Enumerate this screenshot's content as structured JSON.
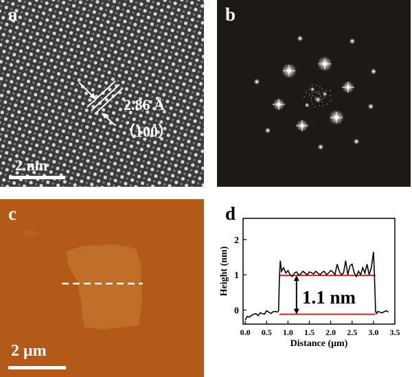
{
  "panels": {
    "a": {
      "label": "a",
      "spacing": "2.86 Å",
      "plane": "（100）",
      "scalebar": "2 nm"
    },
    "b": {
      "label": "b"
    },
    "c": {
      "label": "c",
      "scalebar": "2 μm"
    },
    "d": {
      "label": "d",
      "annotation": "1.1 nm"
    }
  },
  "colors": {
    "afm_background": "#b45a18",
    "fft_background": "#1d1a16",
    "guide_line": "#e02020"
  },
  "chart_data": {
    "type": "line",
    "xlabel": "Distance (μm)",
    "ylabel": "Height (nm)",
    "xlim": [
      -0.05,
      3.5
    ],
    "ylim": [
      -0.4,
      2.6
    ],
    "x_ticks": [
      0.0,
      0.5,
      1.0,
      1.5,
      2.0,
      2.5,
      3.0,
      3.5
    ],
    "x_tick_labels": [
      "0.0",
      "0.5",
      "1.0",
      "1.5",
      "2.0",
      "2.5",
      "3.0",
      "3.5"
    ],
    "y_ticks": [
      0,
      1,
      2
    ],
    "y_tick_labels": [
      "0",
      "1",
      "2"
    ],
    "guide_lines": [
      -0.12,
      0.98
    ],
    "guide_x_range": [
      0.8,
      3.05
    ],
    "arrow_x": 1.2,
    "series": [
      {
        "x": [
          0.0,
          0.05,
          0.1,
          0.15,
          0.2,
          0.25,
          0.3,
          0.35,
          0.4,
          0.45,
          0.5,
          0.55,
          0.6,
          0.65,
          0.7,
          0.75,
          0.78,
          0.8,
          0.82,
          0.85,
          0.9,
          0.95,
          1.0,
          1.05,
          1.1,
          1.15,
          1.2,
          1.25,
          1.3,
          1.35,
          1.4,
          1.45,
          1.5,
          1.55,
          1.6,
          1.65,
          1.7,
          1.75,
          1.8,
          1.85,
          1.9,
          1.95,
          2.0,
          2.05,
          2.1,
          2.15,
          2.2,
          2.25,
          2.3,
          2.35,
          2.4,
          2.45,
          2.5,
          2.55,
          2.6,
          2.65,
          2.7,
          2.75,
          2.8,
          2.85,
          2.9,
          2.95,
          3.0,
          3.02,
          3.05,
          3.08,
          3.1,
          3.15,
          3.2,
          3.25,
          3.3,
          3.35
        ],
        "y": [
          -0.28,
          -0.18,
          -0.2,
          -0.15,
          -0.12,
          -0.1,
          -0.16,
          -0.08,
          -0.1,
          -0.12,
          -0.02,
          -0.06,
          -0.1,
          -0.05,
          -0.04,
          -0.06,
          -0.02,
          0.9,
          1.4,
          1.1,
          1.2,
          1.05,
          1.12,
          1.0,
          0.95,
          1.05,
          1.08,
          1.0,
          1.02,
          1.1,
          1.05,
          1.0,
          1.08,
          1.06,
          1.02,
          1.1,
          1.05,
          1.0,
          1.07,
          1.1,
          1.0,
          1.05,
          1.12,
          1.08,
          1.0,
          1.3,
          1.1,
          1.0,
          1.05,
          1.4,
          1.0,
          1.25,
          1.3,
          1.05,
          0.95,
          1.1,
          1.0,
          1.2,
          1.05,
          1.3,
          1.0,
          1.2,
          1.65,
          1.1,
          -0.05,
          -0.1,
          -0.04,
          -0.06,
          -0.08,
          -0.05,
          -0.02,
          -0.06
        ]
      }
    ]
  }
}
